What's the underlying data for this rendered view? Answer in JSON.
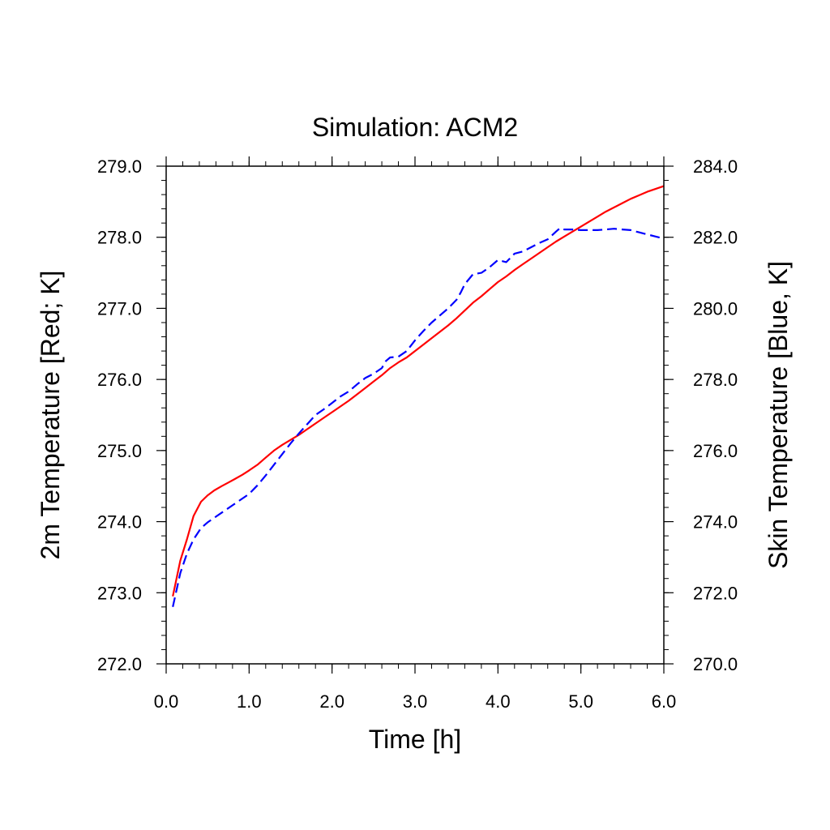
{
  "chart_data": {
    "type": "line",
    "title": "Simulation: ACM2",
    "xlabel": "Time [h]",
    "ylabel_left": "2m Temperature [Red; K]",
    "ylabel_right": "Skin Temperature [Blue, K]",
    "xlim": [
      0.0,
      6.0
    ],
    "ylim_left": [
      272.0,
      279.0
    ],
    "ylim_right": [
      270.0,
      284.0
    ],
    "x_ticks": [
      "0.0",
      "1.0",
      "2.0",
      "3.0",
      "4.0",
      "5.0",
      "6.0"
    ],
    "y_left_ticks": [
      "272.0",
      "273.0",
      "274.0",
      "275.0",
      "276.0",
      "277.0",
      "278.0",
      "279.0"
    ],
    "y_right_ticks": [
      "270.0",
      "272.0",
      "274.0",
      "276.0",
      "278.0",
      "280.0",
      "282.0",
      "284.0"
    ],
    "grid": false,
    "series": [
      {
        "axis": "left",
        "color": "#ff0000",
        "style": "solid",
        "x": [
          0.08,
          0.17,
          0.25,
          0.33,
          0.42,
          0.5,
          0.58,
          0.67,
          0.75,
          0.83,
          0.92,
          1.0,
          1.1,
          1.2,
          1.3,
          1.4,
          1.5,
          1.6,
          1.7,
          1.8,
          1.9,
          2.0,
          2.1,
          2.2,
          2.3,
          2.4,
          2.5,
          2.6,
          2.7,
          2.8,
          2.9,
          3.0,
          3.1,
          3.2,
          3.3,
          3.4,
          3.5,
          3.6,
          3.7,
          3.8,
          3.9,
          4.0,
          4.1,
          4.2,
          4.3,
          4.4,
          4.5,
          4.6,
          4.7,
          4.8,
          4.9,
          5.0,
          5.1,
          5.2,
          5.3,
          5.4,
          5.5,
          5.6,
          5.7,
          5.8,
          5.9,
          6.0
        ],
        "values": [
          272.95,
          273.45,
          273.75,
          274.08,
          274.28,
          274.37,
          274.44,
          274.5,
          274.55,
          274.6,
          274.66,
          274.72,
          274.8,
          274.9,
          275.0,
          275.08,
          275.15,
          275.22,
          275.3,
          275.38,
          275.46,
          275.54,
          275.62,
          275.7,
          275.79,
          275.88,
          275.97,
          276.06,
          276.16,
          276.24,
          276.31,
          276.4,
          276.49,
          276.58,
          276.67,
          276.76,
          276.86,
          276.97,
          277.08,
          277.17,
          277.27,
          277.37,
          277.45,
          277.54,
          277.62,
          277.7,
          277.78,
          277.86,
          277.94,
          278.01,
          278.08,
          278.15,
          278.22,
          278.29,
          278.36,
          278.42,
          278.48,
          278.54,
          278.59,
          278.64,
          278.68,
          278.72
        ]
      },
      {
        "axis": "right",
        "color": "#0000ff",
        "style": "dashed",
        "x": [
          0.08,
          0.17,
          0.25,
          0.33,
          0.42,
          0.5,
          0.6,
          0.7,
          0.8,
          0.9,
          1.0,
          1.1,
          1.2,
          1.3,
          1.4,
          1.5,
          1.6,
          1.7,
          1.8,
          1.9,
          2.0,
          2.1,
          2.2,
          2.3,
          2.4,
          2.5,
          2.6,
          2.65,
          2.7,
          2.8,
          2.9,
          3.0,
          3.1,
          3.2,
          3.3,
          3.4,
          3.5,
          3.55,
          3.6,
          3.7,
          3.8,
          3.9,
          4.0,
          4.1,
          4.2,
          4.3,
          4.4,
          4.5,
          4.6,
          4.7,
          4.75,
          4.8,
          4.9,
          5.0,
          5.1,
          5.2,
          5.3,
          5.4,
          5.5,
          5.6,
          5.7,
          5.8,
          5.9,
          6.0
        ],
        "values": [
          271.6,
          272.55,
          273.1,
          273.5,
          273.82,
          273.98,
          274.14,
          274.3,
          274.46,
          274.62,
          274.78,
          275.02,
          275.3,
          275.6,
          275.9,
          276.2,
          276.48,
          276.74,
          277.0,
          277.16,
          277.34,
          277.52,
          277.66,
          277.86,
          278.04,
          278.16,
          278.32,
          278.52,
          278.62,
          278.64,
          278.8,
          279.1,
          279.36,
          279.6,
          279.8,
          280.0,
          280.24,
          280.44,
          280.68,
          280.96,
          281.0,
          281.16,
          281.36,
          281.3,
          281.54,
          281.6,
          281.72,
          281.84,
          281.94,
          282.16,
          282.26,
          282.22,
          282.22,
          282.2,
          282.2,
          282.2,
          282.22,
          282.24,
          282.22,
          282.2,
          282.14,
          282.08,
          282.02,
          281.96
        ]
      }
    ]
  }
}
